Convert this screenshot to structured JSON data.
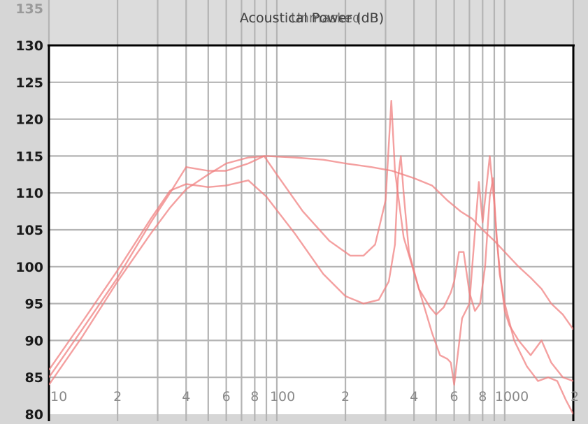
{
  "chart_data": {
    "type": "line",
    "title_overlap": [
      "Acoustical Power (dB)",
      "Unmasked",
      "Acoustical Power (dB)"
    ],
    "x_scale": "log",
    "xlim": [
      10,
      2000
    ],
    "ylim": [
      80,
      135
    ],
    "y_ticks": [
      135,
      130,
      125,
      120,
      115,
      110,
      105,
      100,
      95,
      90,
      85,
      80
    ],
    "y_tick_labels": [
      "135",
      "130",
      "125",
      "120",
      "115",
      "110",
      "105",
      "100",
      "95",
      "90",
      "85",
      "80"
    ],
    "x_ticks": [
      {
        "value": 10,
        "label": "10"
      },
      {
        "value": 20,
        "label": "2"
      },
      {
        "value": 40,
        "label": "4"
      },
      {
        "value": 60,
        "label": "6"
      },
      {
        "value": 80,
        "label": "8"
      },
      {
        "value": 100,
        "label": "100"
      },
      {
        "value": 200,
        "label": "2"
      },
      {
        "value": 400,
        "label": "4"
      },
      {
        "value": 600,
        "label": "6"
      },
      {
        "value": 800,
        "label": "8"
      },
      {
        "value": 1000,
        "label": "1000"
      },
      {
        "value": 2000,
        "label": "2"
      }
    ],
    "grid": true,
    "line_color": "#f08080",
    "series": [
      {
        "values": [
          [
            10,
            86.0
          ],
          [
            14,
            92.5
          ],
          [
            20,
            99.5
          ],
          [
            28,
            106.5
          ],
          [
            34,
            110.3
          ],
          [
            40,
            111.2
          ],
          [
            50,
            110.8
          ],
          [
            60,
            111.0
          ],
          [
            75,
            111.7
          ],
          [
            90,
            109.5
          ],
          [
            120,
            104.5
          ],
          [
            160,
            99.0
          ],
          [
            200,
            96.0
          ],
          [
            240,
            95.0
          ],
          [
            280,
            95.5
          ],
          [
            310,
            98.0
          ],
          [
            330,
            103.0
          ],
          [
            340,
            112.0
          ],
          [
            350,
            115.0
          ],
          [
            360,
            110.0
          ],
          [
            380,
            102.0
          ],
          [
            420,
            97.0
          ],
          [
            470,
            94.5
          ],
          [
            500,
            93.5
          ],
          [
            540,
            94.5
          ],
          [
            580,
            96.5
          ],
          [
            600,
            98.0
          ],
          [
            630,
            102.0
          ],
          [
            660,
            102.0
          ],
          [
            700,
            96.5
          ],
          [
            740,
            94.0
          ],
          [
            780,
            95.0
          ],
          [
            820,
            100.0
          ],
          [
            860,
            109.5
          ],
          [
            890,
            112.0
          ],
          [
            920,
            104.0
          ],
          [
            960,
            98.5
          ],
          [
            1000,
            94.0
          ],
          [
            1050,
            92.0
          ],
          [
            1150,
            90.0
          ],
          [
            1300,
            88.0
          ],
          [
            1450,
            90.0
          ],
          [
            1600,
            87.0
          ],
          [
            1800,
            85.0
          ],
          [
            2000,
            84.5
          ]
        ]
      },
      {
        "values": [
          [
            10,
            85.0
          ],
          [
            14,
            91.5
          ],
          [
            20,
            98.5
          ],
          [
            28,
            106.0
          ],
          [
            34,
            110.0
          ],
          [
            40,
            113.5
          ],
          [
            50,
            113.0
          ],
          [
            60,
            113.0
          ],
          [
            75,
            114.0
          ],
          [
            88,
            115.0
          ],
          [
            100,
            112.5
          ],
          [
            130,
            107.5
          ],
          [
            170,
            103.5
          ],
          [
            210,
            101.5
          ],
          [
            240,
            101.5
          ],
          [
            270,
            103.0
          ],
          [
            300,
            109.0
          ],
          [
            318,
            122.5
          ],
          [
            330,
            113.0
          ],
          [
            360,
            104.0
          ],
          [
            420,
            97.0
          ],
          [
            480,
            91.0
          ],
          [
            520,
            88.0
          ],
          [
            560,
            87.5
          ],
          [
            580,
            87.0
          ],
          [
            600,
            84.0
          ],
          [
            650,
            93.0
          ],
          [
            700,
            95.0
          ],
          [
            720,
            100.0
          ],
          [
            770,
            111.5
          ],
          [
            800,
            106.0
          ],
          [
            860,
            115.0
          ],
          [
            900,
            108.5
          ],
          [
            950,
            99.0
          ],
          [
            1000,
            95.0
          ],
          [
            1100,
            90.0
          ],
          [
            1250,
            86.5
          ],
          [
            1400,
            84.5
          ],
          [
            1550,
            85.0
          ],
          [
            1700,
            84.5
          ],
          [
            1850,
            82.0
          ],
          [
            2000,
            80.0
          ]
        ]
      },
      {
        "values": [
          [
            10,
            84.0
          ],
          [
            14,
            90.5
          ],
          [
            20,
            98.0
          ],
          [
            28,
            104.5
          ],
          [
            34,
            108.0
          ],
          [
            40,
            110.5
          ],
          [
            50,
            112.5
          ],
          [
            60,
            114.0
          ],
          [
            75,
            114.8
          ],
          [
            90,
            115.0
          ],
          [
            120,
            114.8
          ],
          [
            160,
            114.5
          ],
          [
            200,
            114.0
          ],
          [
            260,
            113.5
          ],
          [
            320,
            113.0
          ],
          [
            400,
            112.0
          ],
          [
            480,
            111.0
          ],
          [
            560,
            109.0
          ],
          [
            640,
            107.5
          ],
          [
            720,
            106.5
          ],
          [
            800,
            105.0
          ],
          [
            900,
            103.5
          ],
          [
            1000,
            102.0
          ],
          [
            1150,
            100.0
          ],
          [
            1300,
            98.5
          ],
          [
            1450,
            97.0
          ],
          [
            1600,
            95.0
          ],
          [
            1800,
            93.5
          ],
          [
            2000,
            91.5
          ]
        ]
      }
    ]
  }
}
